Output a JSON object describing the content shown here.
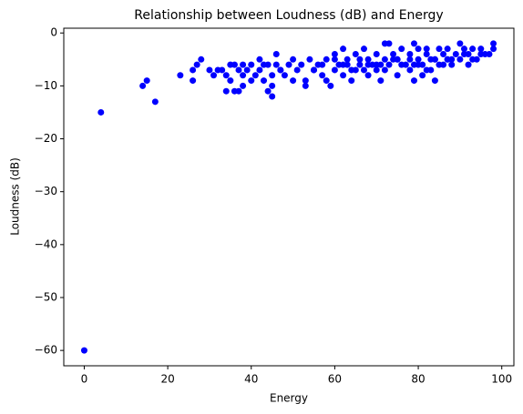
{
  "chart_data": {
    "type": "scatter",
    "title": "Relationship between Loudness (dB) and Energy",
    "x_label": "Energy",
    "y_label": "Loudness (dB)",
    "color": "#0000ff",
    "xlim": [
      -4.9,
      102.9
    ],
    "ylim": [
      -62.9,
      0.9
    ],
    "xticks": [
      0,
      20,
      40,
      60,
      80,
      100
    ],
    "yticks": [
      0,
      {
        "value": -10,
        "label": "−10"
      },
      {
        "value": -20,
        "label": "−20"
      },
      {
        "value": -30,
        "label": "−30"
      },
      {
        "value": -40,
        "label": "−40"
      },
      {
        "value": -50,
        "label": "−50"
      },
      {
        "value": -60,
        "label": "−60"
      }
    ],
    "x": [
      0,
      4,
      14,
      15,
      17,
      23,
      26,
      26,
      27,
      28,
      30,
      31,
      32,
      33,
      34,
      34,
      35,
      35,
      36,
      36,
      37,
      37,
      38,
      38,
      38,
      39,
      40,
      40,
      41,
      42,
      42,
      43,
      43,
      44,
      45,
      45,
      45,
      46,
      46,
      47,
      48,
      49,
      50,
      50,
      51,
      52,
      53,
      53,
      54,
      55,
      56,
      57,
      58,
      58,
      59,
      60,
      60,
      61,
      62,
      62,
      63,
      64,
      65,
      65,
      66,
      67,
      68,
      68,
      69,
      70,
      70,
      71,
      72,
      72,
      73,
      73,
      74,
      75,
      75,
      76,
      77,
      78,
      78,
      79,
      79,
      80,
      80,
      81,
      81,
      82,
      82,
      83,
      84,
      84,
      85,
      85,
      86,
      87,
      87,
      88,
      89,
      90,
      90,
      91,
      92,
      92,
      93,
      94,
      95,
      95,
      96,
      97,
      98,
      98,
      62,
      64,
      66,
      68,
      70,
      72,
      74,
      76,
      78,
      80,
      82,
      84,
      86,
      88,
      60,
      63,
      67,
      71,
      75,
      79,
      83,
      87,
      91,
      93,
      55,
      57,
      47,
      44
    ],
    "y": [
      -60,
      -15,
      -10,
      -9,
      -13,
      -8,
      -7,
      -9,
      -6,
      -5,
      -7,
      -8,
      -7,
      -7,
      -8,
      -11,
      -6,
      -9,
      -6,
      -11,
      -11,
      -7,
      -8,
      -10,
      -6,
      -7,
      -6,
      -9,
      -8,
      -7,
      -5,
      -6,
      -9,
      -11,
      -12,
      -8,
      -10,
      -6,
      -4,
      -7,
      -8,
      -6,
      -5,
      -9,
      -7,
      -6,
      -9,
      -10,
      -5,
      -7,
      -6,
      -8,
      -9,
      -5,
      -10,
      -4,
      -7,
      -6,
      -3,
      -8,
      -5,
      -9,
      -4,
      -7,
      -6,
      -3,
      -8,
      -5,
      -6,
      -4,
      -7,
      -9,
      -2,
      -5,
      -6,
      -2,
      -4,
      -8,
      -5,
      -3,
      -6,
      -4,
      -7,
      -2,
      -9,
      -5,
      -3,
      -8,
      -6,
      -3,
      -4,
      -7,
      -5,
      -9,
      -3,
      -6,
      -4,
      -5,
      -3,
      -6,
      -4,
      -2,
      -5,
      -3,
      -4,
      -6,
      -3,
      -5,
      -4,
      -3,
      -4,
      -4,
      -2,
      -3,
      -6,
      -7,
      -5,
      -6,
      -6,
      -7,
      -5,
      -6,
      -5,
      -6,
      -7,
      -5,
      -6,
      -5,
      -5,
      -6,
      -7,
      -6,
      -5,
      -6,
      -5,
      -5,
      -4,
      -5,
      -7,
      -6,
      -7,
      -6
    ]
  }
}
